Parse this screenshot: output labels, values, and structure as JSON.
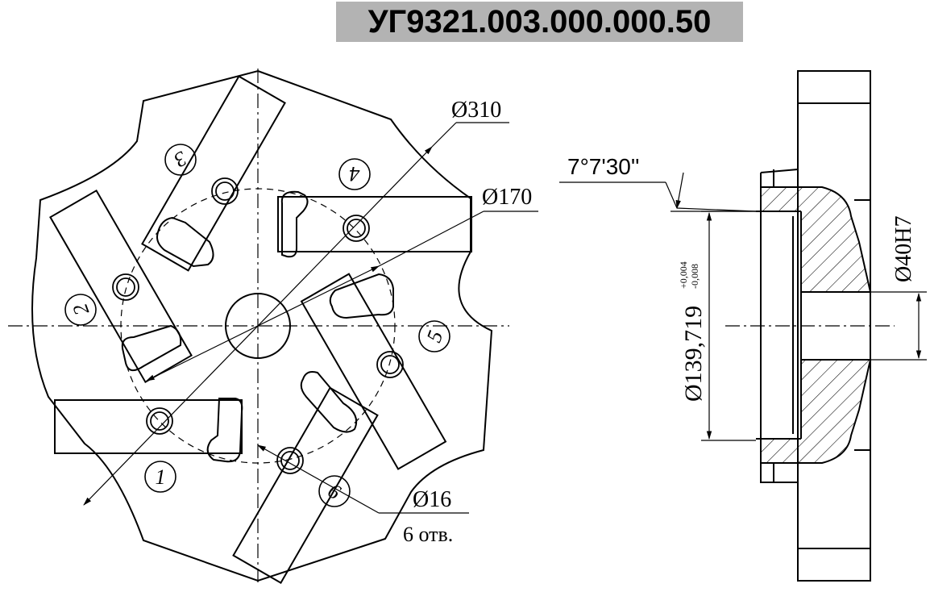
{
  "title": "УГ9321.003.000.000.50",
  "front_view": {
    "dims": {
      "d310": "Ø310",
      "d170": "Ø170",
      "d16": "Ø16",
      "holes": "6 отв."
    },
    "insert_numbers": [
      "1",
      "2",
      "3",
      "4",
      "5",
      "6"
    ]
  },
  "section_view": {
    "angle": "7°7'30''",
    "bore_main": "Ø139,719",
    "tol_upper": "+0,004",
    "tol_lower": "-0,008",
    "bore_hub": "Ø40H7"
  }
}
